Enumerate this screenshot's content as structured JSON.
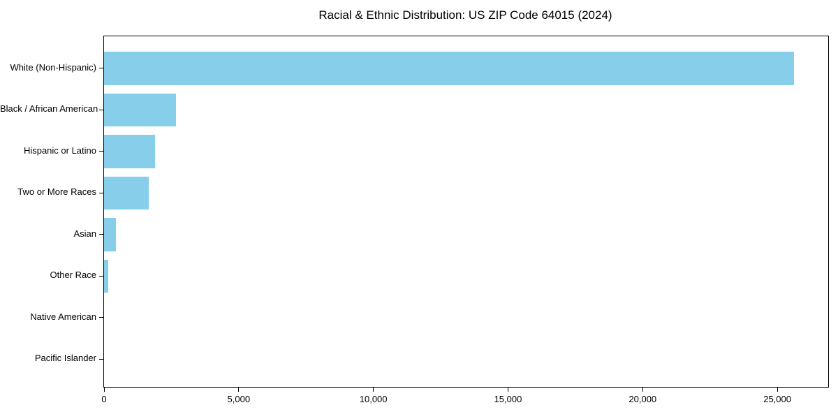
{
  "chart_data": {
    "type": "bar",
    "orientation": "horizontal",
    "title": "Racial & Ethnic Distribution: US ZIP Code 64015 (2024)",
    "xlabel": "",
    "ylabel": "",
    "categories": [
      "White (Non-Hispanic)",
      "Black / African American",
      "Hispanic or Latino",
      "Two or More Races",
      "Asian",
      "Other Race",
      "Native American",
      "Pacific Islander"
    ],
    "values": [
      25610,
      2670,
      1890,
      1660,
      450,
      160,
      0,
      0
    ],
    "xlim": [
      0,
      26890
    ],
    "x_ticks": [
      0,
      5000,
      10000,
      15000,
      20000,
      25000
    ],
    "x_tick_labels": [
      "0",
      "5,000",
      "10,000",
      "15,000",
      "20,000",
      "25,000"
    ],
    "bar_color": "#87CEEB",
    "grid": false,
    "legend": null,
    "background_color": "#ffffff",
    "frame_color": "#000000"
  }
}
